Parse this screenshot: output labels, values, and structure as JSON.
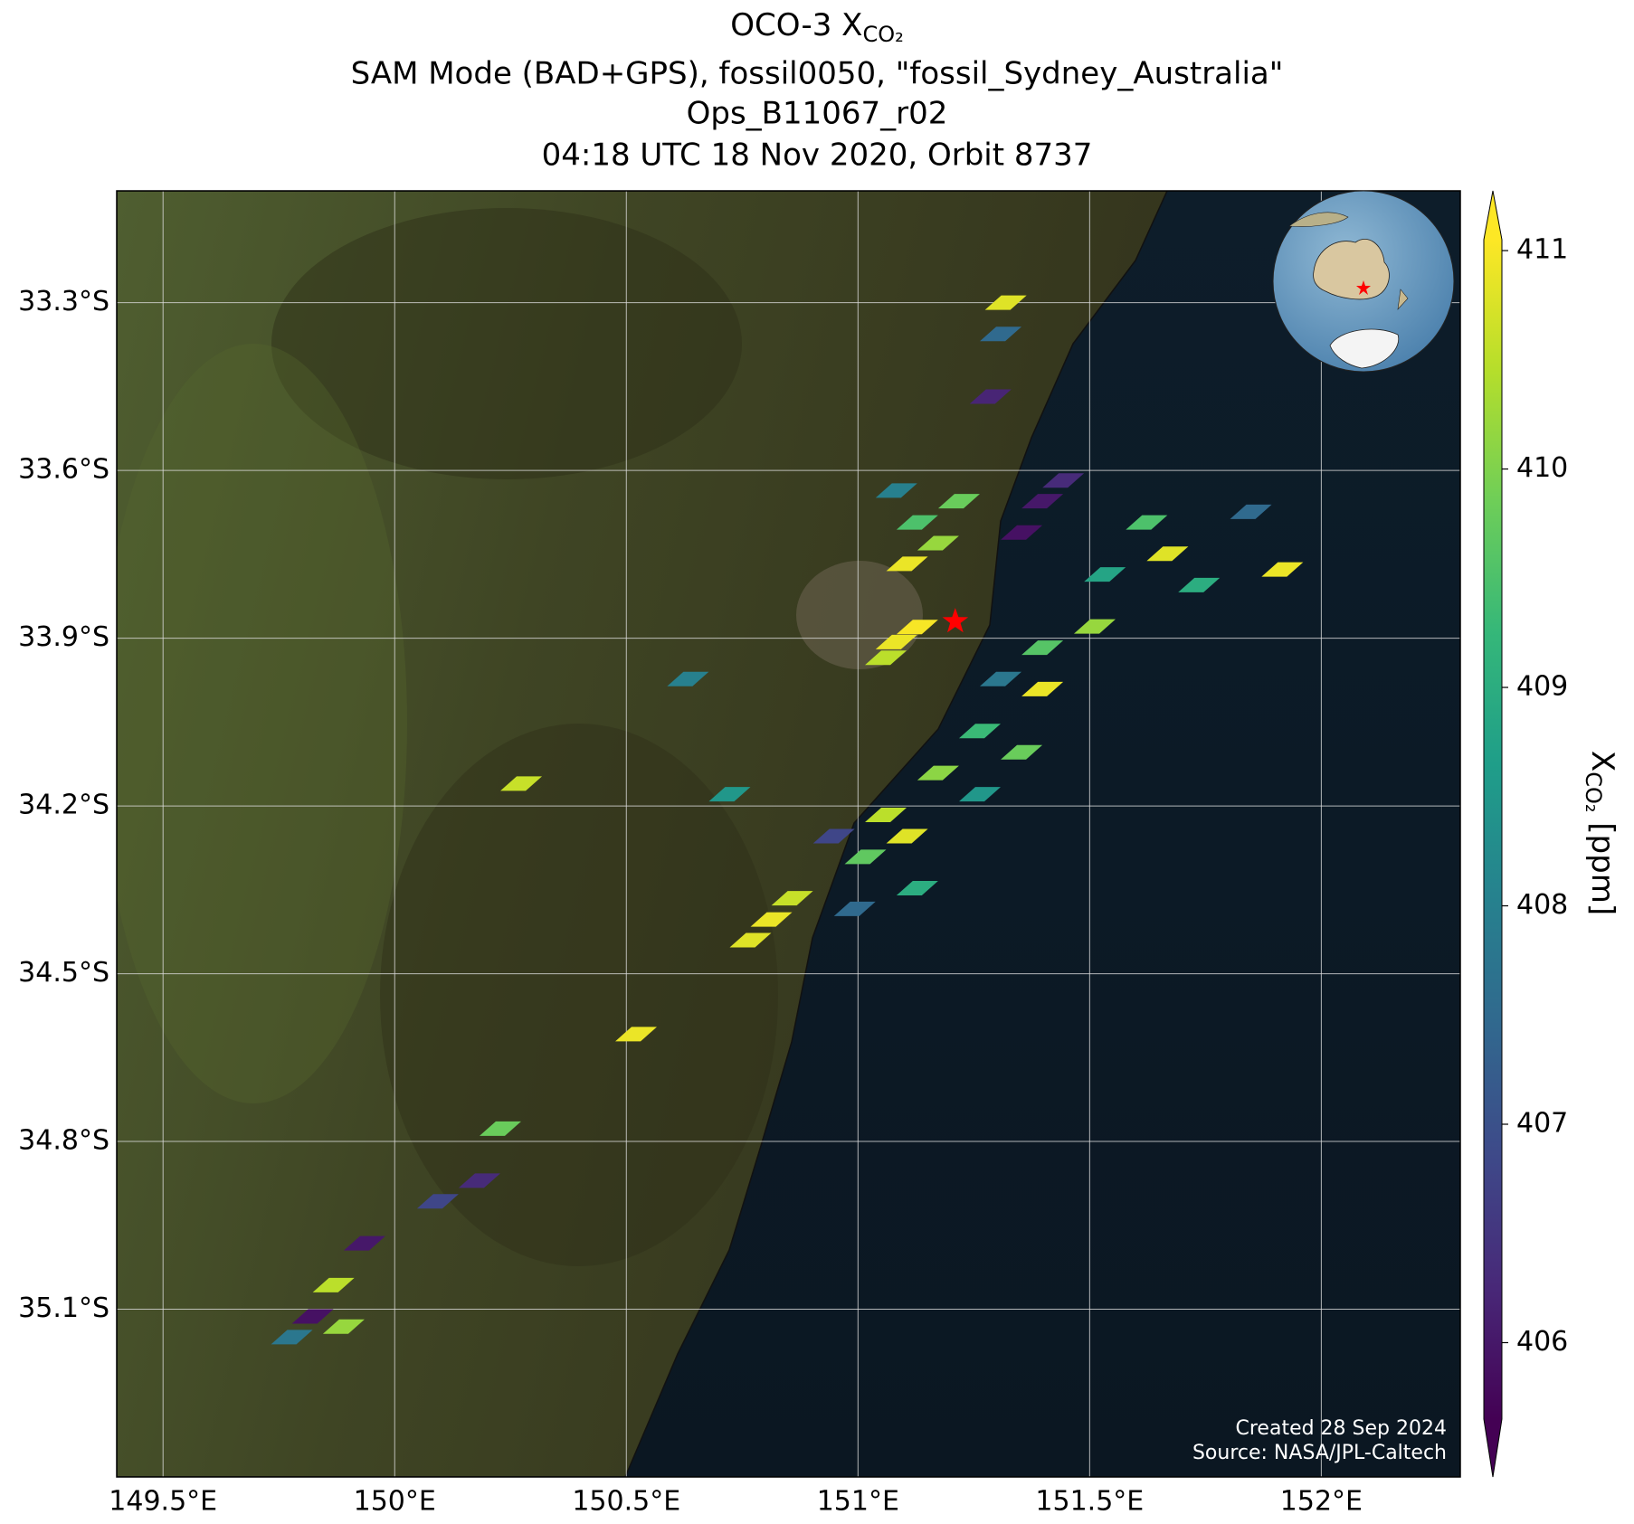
{
  "chart_data": {
    "type": "map",
    "title_main": "OCO-3 X",
    "title_sub": "CO₂",
    "subtitle_lines": [
      "SAM Mode (BAD+GPS), fossil0050, \"fossil_Sydney_Australia\"",
      "Ops_B11067_r02",
      "04:18 UTC 18 Nov 2020, Orbit 8737"
    ],
    "xlim": [
      149.4,
      152.3
    ],
    "ylim": [
      -35.4,
      -33.1
    ],
    "xticks": [
      {
        "value": 149.5,
        "label": "149.5°E"
      },
      {
        "value": 150,
        "label": "150°E"
      },
      {
        "value": 150.5,
        "label": "150.5°E"
      },
      {
        "value": 151,
        "label": "151°E"
      },
      {
        "value": 151.5,
        "label": "151.5°E"
      },
      {
        "value": 152,
        "label": "152°E"
      }
    ],
    "yticks": [
      {
        "value": -33.3,
        "label": "33.3°S"
      },
      {
        "value": -33.6,
        "label": "33.6°S"
      },
      {
        "value": -33.9,
        "label": "33.9°S"
      },
      {
        "value": -34.2,
        "label": "34.2°S"
      },
      {
        "value": -34.5,
        "label": "34.5°S"
      },
      {
        "value": -34.8,
        "label": "34.8°S"
      },
      {
        "value": -35.1,
        "label": "35.1°S"
      }
    ],
    "grid": true,
    "colormap": "viridis",
    "clim": [
      405.65,
      411.05
    ],
    "cticks": [
      406,
      407,
      408,
      409,
      410,
      411
    ],
    "colorbar_label": "X",
    "colorbar_label_sub": "CO₂",
    "colorbar_label_unit": " [ppm]",
    "target": {
      "lon": 151.21,
      "lat": -33.87,
      "color": "#ff0000"
    },
    "soundings": {
      "lon": [
        151.083,
        151.128,
        151.06,
        151.128,
        151.173,
        151.083,
        151.218,
        151.106,
        151.398,
        151.443,
        151.353,
        151.308,
        151.286,
        151.319,
        151.623,
        151.668,
        151.533,
        151.511,
        151.398,
        151.308,
        151.398,
        151.263,
        151.353,
        151.173,
        151.263,
        151.736,
        151.848,
        151.916,
        151.06,
        151.016,
        151.106,
        151.128,
        150.993,
        150.948,
        150.813,
        150.858,
        150.768,
        150.521,
        150.228,
        150.183,
        150.093,
        149.868,
        149.823,
        149.778,
        149.89,
        149.935,
        150.273,
        150.633,
        150.723
      ],
      "lat": [
        -33.907,
        -33.88,
        -33.935,
        -33.693,
        -33.73,
        -33.636,
        -33.655,
        -33.767,
        -33.655,
        -33.618,
        -33.711,
        -33.356,
        -33.468,
        -33.3,
        -33.693,
        -33.749,
        -33.786,
        -33.879,
        -33.917,
        -33.973,
        -33.991,
        -34.066,
        -34.104,
        -34.141,
        -34.179,
        -33.805,
        -33.674,
        -33.777,
        -34.216,
        -34.291,
        -34.254,
        -34.347,
        -34.384,
        -34.254,
        -34.403,
        -34.365,
        -34.44,
        -34.608,
        -34.777,
        -34.87,
        -34.907,
        -35.057,
        -35.113,
        -35.15,
        -35.131,
        -34.982,
        -34.16,
        -33.973,
        -34.179
      ],
      "xco2": [
        410.9,
        411.0,
        410.5,
        409.5,
        410.2,
        408.0,
        409.8,
        410.9,
        406.0,
        406.3,
        405.9,
        407.5,
        406.2,
        410.8,
        409.5,
        410.8,
        408.8,
        410.2,
        409.6,
        407.8,
        410.9,
        409.3,
        409.8,
        410.1,
        408.5,
        409.0,
        407.5,
        410.9,
        410.5,
        409.7,
        410.8,
        409.0,
        407.5,
        406.8,
        410.9,
        410.6,
        410.8,
        410.9,
        409.8,
        406.3,
        406.8,
        410.5,
        405.9,
        407.8,
        410.2,
        406.0,
        410.6,
        408.0,
        408.5
      ]
    },
    "annotations": [
      "Created 28 Sep 2024",
      "Source: NASA/JPL-Caltech"
    ]
  }
}
